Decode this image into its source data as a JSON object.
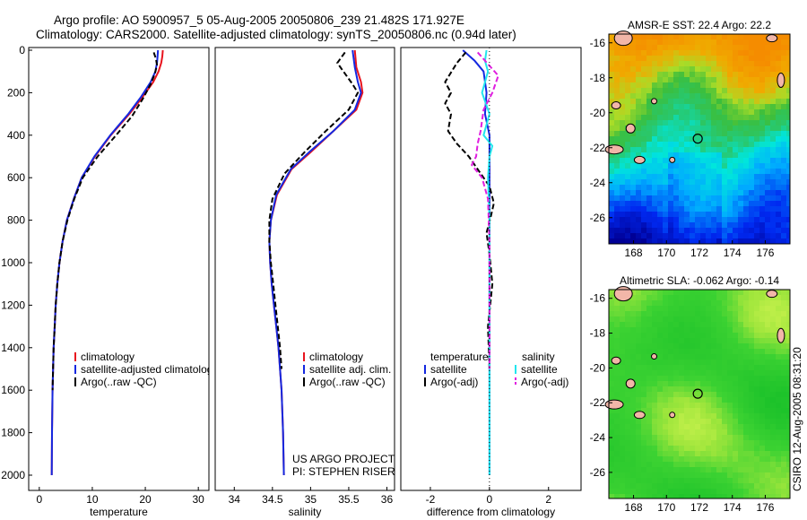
{
  "header": {
    "line1": "Argo profile: AO 5900957_5 05-Aug-2005 20050806_239 21.482S 171.927E",
    "line2": "Climatology: CARS2000. Satellite-adjusted climatology: synTS_20050806.nc (0.94d later)"
  },
  "side_label": "CSIRO 12-Aug-2005 08:31:20",
  "colors": {
    "red": "#e8141e",
    "blue": "#1428e0",
    "black": "#000000",
    "cyan": "#22e6ee",
    "magenta": "#e01ee0"
  },
  "chart_data": [
    {
      "type": "line",
      "panel": "temperature",
      "xlabel": "temperature",
      "ylabel": "",
      "xlim": [
        -2,
        32
      ],
      "ylim": [
        2050,
        0
      ],
      "xticks": [
        "0",
        "10",
        "20",
        "30"
      ],
      "xtick_values": [
        0,
        10,
        20,
        30
      ],
      "yticks": [
        "0",
        "200",
        "400",
        "600",
        "800",
        "1000",
        "1200",
        "1400",
        "1600",
        "1800",
        "2000"
      ],
      "ytick_values": [
        0,
        200,
        400,
        600,
        800,
        1000,
        1200,
        1400,
        1600,
        1800,
        2000
      ],
      "legend": [
        "climatology",
        "satellite-adjusted climatology",
        "Argo(..raw -QC)"
      ],
      "series": [
        {
          "name": "climatology",
          "color": "red",
          "dash": "",
          "x": [
            23.3,
            23.2,
            23.0,
            22.5,
            21.5,
            19.5,
            17.0,
            13.5,
            10.5,
            8.0,
            6.5,
            5.2,
            4.4,
            3.8,
            3.4,
            3.1,
            2.9,
            2.7,
            2.6,
            2.5,
            2.4,
            2.35
          ],
          "y": [
            0,
            30,
            60,
            100,
            150,
            220,
            300,
            400,
            500,
            600,
            700,
            800,
            900,
            1000,
            1100,
            1200,
            1300,
            1400,
            1500,
            1600,
            1800,
            2000
          ]
        },
        {
          "name": "satellite-adjusted climatology",
          "color": "blue",
          "dash": "",
          "x": [
            22.4,
            22.3,
            22.2,
            21.9,
            21.0,
            19.2,
            16.8,
            13.4,
            10.4,
            8.0,
            6.5,
            5.2,
            4.4,
            3.8,
            3.4,
            3.1,
            2.9,
            2.7,
            2.6,
            2.5,
            2.4,
            2.35
          ],
          "y": [
            0,
            30,
            60,
            100,
            150,
            220,
            300,
            400,
            500,
            600,
            700,
            800,
            900,
            1000,
            1100,
            1200,
            1300,
            1400,
            1500,
            1600,
            1800,
            2000
          ]
        },
        {
          "name": "Argo(..raw -QC)",
          "color": "black",
          "dash": "6,3",
          "x": [
            21.6,
            22.0,
            22.2,
            21.8,
            21.0,
            19.5,
            17.5,
            14.5,
            11.0,
            8.2,
            6.6,
            5.3,
            4.4,
            3.8,
            3.4,
            3.1,
            2.9,
            2.7,
            2.6,
            2.5
          ],
          "y": [
            10,
            40,
            70,
            110,
            160,
            230,
            310,
            400,
            500,
            600,
            700,
            800,
            900,
            1000,
            1100,
            1200,
            1300,
            1400,
            1500,
            1600
          ]
        }
      ]
    },
    {
      "type": "line",
      "panel": "salinity",
      "xlabel": "salinity",
      "ylabel": "",
      "xlim": [
        33.75,
        36.1
      ],
      "ylim": [
        2050,
        0
      ],
      "xticks": [
        "34",
        "34.5",
        "35",
        "35.5",
        "36"
      ],
      "xtick_values": [
        34,
        34.5,
        35,
        35.5,
        36
      ],
      "legend": [
        "climatology",
        "satellite adj. clim.",
        "Argo(..raw -QC)"
      ],
      "annotation": [
        "US ARGO PROJECT",
        "PI: STEPHEN RISER"
      ],
      "series": [
        {
          "name": "climatology",
          "color": "red",
          "dash": "",
          "x": [
            35.58,
            35.6,
            35.66,
            35.68,
            35.6,
            35.3,
            35.0,
            34.75,
            34.56,
            34.48,
            34.46,
            34.47,
            34.49,
            34.52,
            34.55,
            34.58,
            34.6,
            34.62,
            34.64,
            34.65
          ],
          "y": [
            0,
            80,
            150,
            200,
            280,
            380,
            480,
            560,
            680,
            800,
            900,
            1000,
            1100,
            1200,
            1300,
            1400,
            1500,
            1600,
            1800,
            2000
          ]
        },
        {
          "name": "satellite adj. clim.",
          "color": "blue",
          "dash": "",
          "x": [
            35.55,
            35.58,
            35.62,
            35.66,
            35.58,
            35.3,
            34.98,
            34.74,
            34.55,
            34.48,
            34.46,
            34.47,
            34.49,
            34.52,
            34.55,
            34.58,
            34.6,
            34.62,
            34.64,
            34.65
          ],
          "y": [
            0,
            80,
            150,
            200,
            280,
            380,
            480,
            560,
            680,
            800,
            900,
            1000,
            1100,
            1200,
            1300,
            1400,
            1500,
            1600,
            1800,
            2000
          ]
        },
        {
          "name": "Argo(..raw -QC)",
          "color": "black",
          "dash": "6,3",
          "x": [
            35.45,
            35.35,
            35.45,
            35.55,
            35.62,
            35.5,
            35.2,
            34.92,
            34.66,
            34.5,
            34.46,
            34.46,
            34.48,
            34.51,
            34.54,
            34.57,
            34.6,
            34.62
          ],
          "y": [
            10,
            60,
            110,
            160,
            200,
            280,
            380,
            480,
            580,
            700,
            800,
            900,
            1000,
            1100,
            1200,
            1300,
            1400,
            1500
          ]
        }
      ]
    },
    {
      "type": "line",
      "panel": "difference",
      "xlabel": "difference from climatology",
      "ylabel": "",
      "xlim": [
        -3,
        3.1
      ],
      "ylim": [
        2050,
        0
      ],
      "xticks": [
        "-2",
        "0",
        "2"
      ],
      "xtick_values": [
        -2,
        0,
        2
      ],
      "legend_temperature": [
        "temperature",
        "satellite",
        "Argo(-adj)"
      ],
      "legend_salinity": [
        "salinity",
        "satellite",
        "Argo(-adj)"
      ],
      "series": [
        {
          "name": "temperature satellite",
          "color": "blue",
          "dash": "",
          "x": [
            -0.9,
            -0.5,
            -0.2,
            -0.1,
            -0.15,
            0.0,
            0.0,
            0.0,
            0.0,
            0.0,
            0.0,
            0.0,
            0.0,
            0.0,
            0.0,
            0.0
          ],
          "y": [
            0,
            50,
            100,
            200,
            300,
            400,
            500,
            700,
            800,
            900,
            1100,
            1300,
            1500,
            1700,
            1900,
            2000
          ]
        },
        {
          "name": "temperature Argo(-adj)",
          "color": "black",
          "dash": "6,3",
          "x": [
            -0.8,
            -1.1,
            -1.5,
            -1.3,
            -1.5,
            -1.3,
            -1.4,
            -1.1,
            -0.7,
            -0.3,
            0.0,
            0.15,
            0.05,
            -0.1,
            0.0,
            0.1,
            -0.05,
            0.0
          ],
          "y": [
            10,
            60,
            150,
            200,
            250,
            300,
            380,
            440,
            500,
            580,
            640,
            720,
            780,
            860,
            960,
            1100,
            1300,
            1500
          ]
        },
        {
          "name": "salinity satellite",
          "color": "cyan",
          "dash": "",
          "x": [
            -0.1,
            -0.15,
            -0.05,
            -0.25,
            0.0,
            -0.2,
            0.1,
            0.0,
            -0.05,
            0.0,
            0.0,
            0.0,
            0.0,
            0.0,
            0.0
          ],
          "y": [
            0,
            50,
            100,
            200,
            300,
            400,
            450,
            500,
            600,
            800,
            1000,
            1200,
            1500,
            1800,
            2000
          ]
        },
        {
          "name": "salinity Argo(-adj)",
          "color": "magenta",
          "dash": "6,3",
          "x": [
            -0.4,
            0.3,
            0.1,
            -0.2,
            -0.3,
            -0.4,
            -0.45,
            -0.6,
            -0.25,
            -0.05,
            0.0,
            0.0,
            0.0
          ],
          "y": [
            10,
            120,
            200,
            280,
            380,
            440,
            500,
            540,
            600,
            700,
            900,
            1200,
            1500
          ]
        }
      ]
    },
    {
      "type": "heatmap",
      "panel": "sst_map",
      "title": "AMSR-E SST: 22.4 Argo: 22.2",
      "xlim": [
        166.5,
        177.5
      ],
      "ylim": [
        -27.5,
        -15.5
      ],
      "xticks": [
        "168",
        "170",
        "172",
        "174",
        "176"
      ],
      "xtick_values": [
        168,
        170,
        172,
        174,
        176
      ],
      "yticks": [
        "-16",
        "-18",
        "-20",
        "-22",
        "-24",
        "-26"
      ],
      "ytick_values": [
        -16,
        -18,
        -20,
        -22,
        -24,
        -26
      ],
      "marker": {
        "lon": 171.9,
        "lat": -21.48
      }
    },
    {
      "type": "heatmap",
      "panel": "sla_map",
      "title": "Altimetric SLA: -0.062 Argo: -0.14",
      "xlim": [
        166.5,
        177.5
      ],
      "ylim": [
        -27.5,
        -15.5
      ],
      "xticks": [
        "168",
        "170",
        "172",
        "174",
        "176"
      ],
      "xtick_values": [
        168,
        170,
        172,
        174,
        176
      ],
      "yticks": [
        "-16",
        "-18",
        "-20",
        "-22",
        "-24",
        "-26"
      ],
      "ytick_values": [
        -16,
        -18,
        -20,
        -22,
        -24,
        -26
      ],
      "marker": {
        "lon": 171.9,
        "lat": -21.48
      }
    }
  ]
}
